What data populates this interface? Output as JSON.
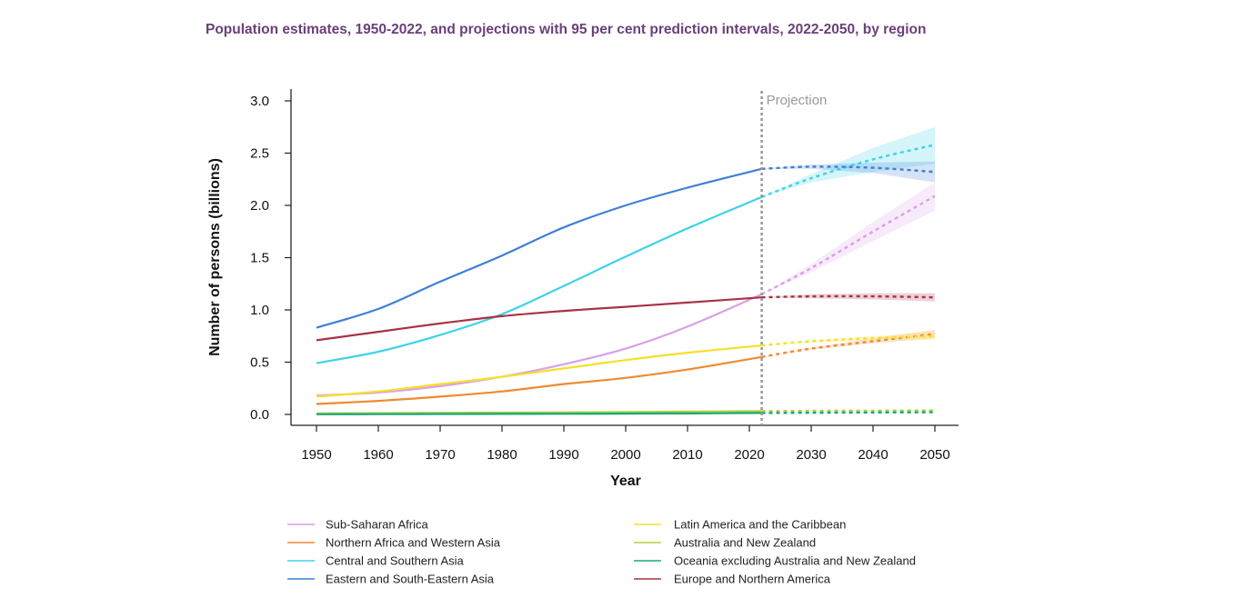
{
  "title": "Population estimates, 1950-2022, and projections with 95 per cent prediction intervals, 2022-2050, by region",
  "chart_data": {
    "type": "line",
    "title": "Population estimates, 1950-2022, and projections with 95 per cent prediction intervals, 2022-2050, by region",
    "xlabel": "Year",
    "ylabel": "Number of persons (billions)",
    "xlim": [
      1950,
      2050
    ],
    "ylim": [
      0,
      3.0
    ],
    "xticks": [
      1950,
      1960,
      1970,
      1980,
      1990,
      2000,
      2010,
      2020,
      2030,
      2040,
      2050
    ],
    "yticks": [
      "0.0",
      "0.5",
      "1.0",
      "1.5",
      "2.0",
      "2.5",
      "3.0"
    ],
    "projection_start": 2022,
    "projection_label": "Projection",
    "grid": false,
    "legend_position": "bottom",
    "series": [
      {
        "name": "Sub-Saharan Africa",
        "color": "#d9a0e8",
        "x": [
          1950,
          1960,
          1970,
          1980,
          1990,
          2000,
          2010,
          2022
        ],
        "values": [
          0.18,
          0.21,
          0.27,
          0.36,
          0.48,
          0.63,
          0.84,
          1.15
        ],
        "proj_x": [
          2022,
          2030,
          2040,
          2050
        ],
        "proj_values": [
          1.15,
          1.4,
          1.75,
          2.09
        ],
        "proj_lower": [
          1.15,
          1.36,
          1.66,
          1.95
        ],
        "proj_upper": [
          1.15,
          1.44,
          1.84,
          2.22
        ]
      },
      {
        "name": "Northern Africa and Western Asia",
        "color": "#f08a30",
        "x": [
          1950,
          1960,
          1970,
          1980,
          1990,
          2000,
          2010,
          2022
        ],
        "values": [
          0.1,
          0.13,
          0.17,
          0.22,
          0.29,
          0.35,
          0.43,
          0.55
        ],
        "proj_x": [
          2022,
          2030,
          2040,
          2050
        ],
        "proj_values": [
          0.55,
          0.63,
          0.7,
          0.77
        ],
        "proj_lower": [
          0.55,
          0.62,
          0.68,
          0.73
        ],
        "proj_upper": [
          0.55,
          0.64,
          0.73,
          0.81
        ]
      },
      {
        "name": "Central and Southern Asia",
        "color": "#3dd2ea",
        "x": [
          1950,
          1960,
          1970,
          1980,
          1990,
          2000,
          2010,
          2022
        ],
        "values": [
          0.49,
          0.6,
          0.76,
          0.96,
          1.23,
          1.51,
          1.78,
          2.08
        ],
        "proj_x": [
          2022,
          2030,
          2040,
          2050
        ],
        "proj_values": [
          2.08,
          2.26,
          2.44,
          2.58
        ],
        "proj_lower": [
          2.08,
          2.22,
          2.32,
          2.4
        ],
        "proj_upper": [
          2.08,
          2.3,
          2.55,
          2.75
        ]
      },
      {
        "name": "Eastern and South-Eastern Asia",
        "color": "#3f7fd8",
        "x": [
          1950,
          1960,
          1970,
          1980,
          1990,
          2000,
          2010,
          2022
        ],
        "values": [
          0.83,
          1.01,
          1.27,
          1.52,
          1.79,
          2.0,
          2.17,
          2.35
        ],
        "proj_x": [
          2022,
          2030,
          2040,
          2050
        ],
        "proj_values": [
          2.35,
          2.37,
          2.36,
          2.32
        ],
        "proj_lower": [
          2.35,
          2.35,
          2.31,
          2.22
        ],
        "proj_upper": [
          2.35,
          2.39,
          2.41,
          2.42
        ]
      },
      {
        "name": "Latin America and the Caribbean",
        "color": "#f5e02a",
        "x": [
          1950,
          1960,
          1970,
          1980,
          1990,
          2000,
          2010,
          2022
        ],
        "values": [
          0.17,
          0.22,
          0.29,
          0.36,
          0.44,
          0.52,
          0.59,
          0.66
        ],
        "proj_x": [
          2022,
          2030,
          2040,
          2050
        ],
        "proj_values": [
          0.66,
          0.7,
          0.73,
          0.75
        ],
        "proj_lower": [
          0.66,
          0.69,
          0.71,
          0.71
        ],
        "proj_upper": [
          0.66,
          0.71,
          0.75,
          0.79
        ]
      },
      {
        "name": "Australia and New Zealand",
        "color": "#b0d23c",
        "x": [
          1950,
          1960,
          1970,
          1980,
          1990,
          2000,
          2010,
          2022
        ],
        "values": [
          0.01,
          0.012,
          0.015,
          0.017,
          0.02,
          0.023,
          0.027,
          0.031
        ],
        "proj_x": [
          2022,
          2030,
          2040,
          2050
        ],
        "proj_values": [
          0.031,
          0.034,
          0.036,
          0.038
        ],
        "proj_lower": [
          0.031,
          0.033,
          0.034,
          0.035
        ],
        "proj_upper": [
          0.031,
          0.035,
          0.038,
          0.041
        ]
      },
      {
        "name": "Oceania excluding Australia and New Zealand",
        "color": "#1aa878",
        "x": [
          1950,
          1960,
          1970,
          1980,
          1990,
          2000,
          2010,
          2022
        ],
        "values": [
          0.002,
          0.003,
          0.004,
          0.005,
          0.006,
          0.008,
          0.01,
          0.014
        ],
        "proj_x": [
          2022,
          2030,
          2040,
          2050
        ],
        "proj_values": [
          0.014,
          0.016,
          0.018,
          0.021
        ],
        "proj_lower": [
          0.014,
          0.015,
          0.017,
          0.019
        ],
        "proj_upper": [
          0.014,
          0.017,
          0.02,
          0.023
        ]
      },
      {
        "name": "Europe and Northern America",
        "color": "#a83245",
        "x": [
          1950,
          1960,
          1970,
          1980,
          1990,
          2000,
          2010,
          2022
        ],
        "values": [
          0.71,
          0.79,
          0.87,
          0.94,
          0.99,
          1.03,
          1.07,
          1.12
        ],
        "proj_x": [
          2022,
          2030,
          2040,
          2050
        ],
        "proj_values": [
          1.12,
          1.13,
          1.13,
          1.12
        ],
        "proj_lower": [
          1.12,
          1.11,
          1.1,
          1.08
        ],
        "proj_upper": [
          1.12,
          1.15,
          1.16,
          1.16
        ]
      }
    ]
  }
}
